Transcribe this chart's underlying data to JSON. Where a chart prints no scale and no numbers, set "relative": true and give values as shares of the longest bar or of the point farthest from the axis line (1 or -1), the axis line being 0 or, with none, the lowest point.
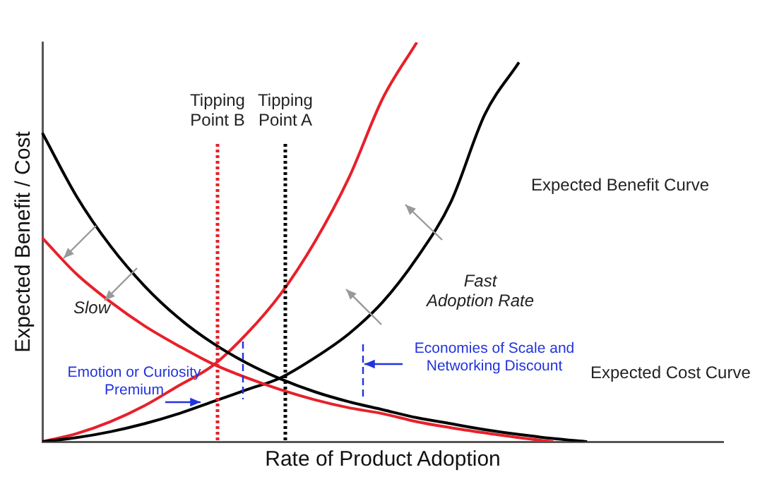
{
  "chart_data": {
    "type": "line",
    "relative": true,
    "xlabel": "Rate of Product Adoption",
    "ylabel": "Expected Benefit / Cost",
    "legend": false,
    "marker": "none",
    "line_style": "solid",
    "categories": [
      null,
      null,
      null,
      null,
      null,
      null,
      null,
      null,
      null,
      null,
      null,
      null,
      null,
      null,
      null,
      null,
      null,
      null,
      null,
      null,
      null
    ],
    "series": [
      {
        "color": "#000000",
        "values": [
          0.773,
          0.615,
          0.49,
          0.39,
          0.31,
          0.247,
          0.197,
          0.157,
          0.125,
          0.1,
          0.08,
          0.06,
          0.045,
          0.03,
          0.018,
          0.008,
          0,
          null,
          null,
          null,
          null
        ]
      },
      {
        "color": "#e8202a",
        "values": [
          0.51,
          0.42,
          0.35,
          0.29,
          0.24,
          0.195,
          0.16,
          0.13,
          0.105,
          0.085,
          0.07,
          0.05,
          0.035,
          0.022,
          0.01,
          0,
          null,
          null,
          null,
          null,
          null
        ]
      },
      {
        "color": "#000000",
        "values": [
          0,
          0.01,
          0.025,
          0.045,
          0.07,
          0.1,
          0.13,
          0.16,
          0.21,
          0.27,
          0.35,
          0.46,
          0.6,
          0.82,
          0.95,
          null,
          null,
          null,
          null,
          null,
          null
        ]
      },
      {
        "color": "#e8202a",
        "values": [
          0,
          0.02,
          0.05,
          0.09,
          0.14,
          0.19,
          0.27,
          0.37,
          0.5,
          0.66,
          0.86,
          1,
          null,
          null,
          null,
          null,
          null,
          null,
          null,
          null,
          null
        ]
      }
    ],
    "annotations": [
      "Expected Benefit Curve",
      "Expected Cost Curve",
      "Slow",
      "Fast\nAdoption Rate",
      "Economies of Scale and\nNetworking Discount",
      "Emotion or Curiosity\nPremium",
      "Tipping\nPoint B",
      "Tipping\nPoint A"
    ]
  }
}
